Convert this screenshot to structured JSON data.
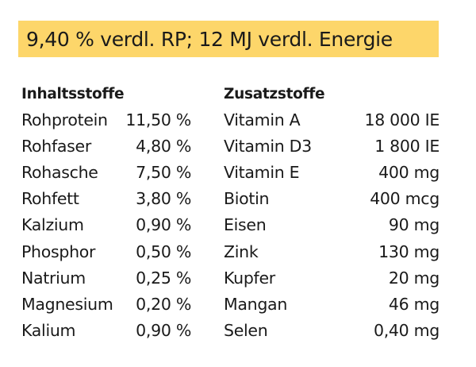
{
  "banner": "9,40 % verdl. RP; 12 MJ verdl. Energie",
  "inhaltsstoffe": {
    "heading": "Inhaltsstoffe",
    "rows": [
      {
        "name": "Rohprotein",
        "value": "11,50 %"
      },
      {
        "name": "Rohfaser",
        "value": "4,80 %"
      },
      {
        "name": "Rohasche",
        "value": "7,50 %"
      },
      {
        "name": "Rohfett",
        "value": "3,80 %"
      },
      {
        "name": "Kalzium",
        "value": "0,90 %"
      },
      {
        "name": "Phosphor",
        "value": "0,50 %"
      },
      {
        "name": "Natrium",
        "value": "0,25 %"
      },
      {
        "name": "Magnesium",
        "value": "0,20 %"
      },
      {
        "name": "Kalium",
        "value": "0,90 %"
      }
    ]
  },
  "zusatzstoffe": {
    "heading": "Zusatzstoffe",
    "rows": [
      {
        "name": "Vitamin A",
        "value": "18 000 IE"
      },
      {
        "name": "Vitamin D3",
        "value": "1 800 IE"
      },
      {
        "name": "Vitamin E",
        "value": "400 mg"
      },
      {
        "name": "Biotin",
        "value": "400 mcg"
      },
      {
        "name": "Eisen",
        "value": "90 mg"
      },
      {
        "name": "Zink",
        "value": "130 mg"
      },
      {
        "name": "Kupfer",
        "value": "20 mg"
      },
      {
        "name": "Mangan",
        "value": "46 mg"
      },
      {
        "name": "Selen",
        "value": "0,40 mg"
      }
    ]
  },
  "colors": {
    "banner_background": "#fdd66a",
    "text": "#1a1a1a"
  }
}
